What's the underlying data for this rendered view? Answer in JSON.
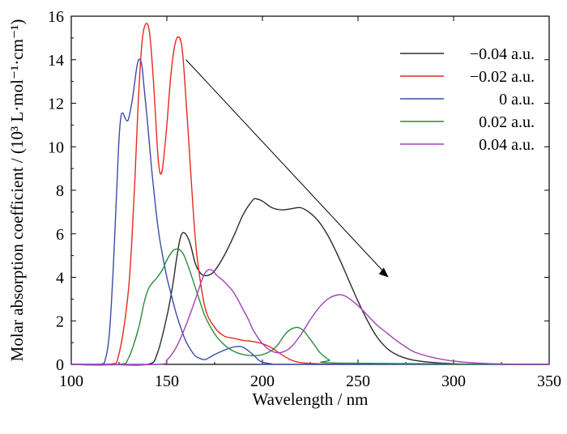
{
  "chart_data": {
    "type": "line",
    "xlabel": "Wavelength / nm",
    "ylabel": "Molar absorption coefficient / (10³ L·mol⁻¹·cm⁻¹)",
    "xlim": [
      100,
      350
    ],
    "ylim": [
      0,
      16
    ],
    "xticks": [
      100,
      150,
      200,
      250,
      300,
      350
    ],
    "yticks": [
      0,
      2,
      4,
      6,
      8,
      10,
      12,
      14,
      16
    ],
    "legend_position": "top-right",
    "annotation": "arrow from upper-left (≈160 nm, 14) to lower-right (≈265 nm, 4) indicating trend",
    "series": [
      {
        "name": "−0.04 a.u.",
        "color": "#2b2b2b",
        "x": [
          100,
          120,
          140,
          145,
          150,
          153,
          155,
          157,
          159,
          162,
          165,
          168,
          170,
          172,
          175,
          180,
          185,
          190,
          195,
          197,
          200,
          205,
          210,
          215,
          220,
          225,
          230,
          235,
          240,
          245,
          250,
          255,
          260,
          265,
          270,
          275,
          280,
          290,
          300,
          310,
          350
        ],
        "y": [
          0,
          0,
          0,
          0.5,
          2.2,
          3.6,
          4.8,
          5.8,
          6.05,
          5.6,
          4.6,
          4.15,
          4.08,
          4.1,
          4.3,
          5.0,
          5.9,
          6.9,
          7.55,
          7.6,
          7.5,
          7.2,
          7.1,
          7.15,
          7.2,
          6.95,
          6.5,
          5.8,
          4.9,
          3.9,
          2.9,
          2.0,
          1.25,
          0.75,
          0.45,
          0.28,
          0.18,
          0.08,
          0.03,
          0.01,
          0
        ]
      },
      {
        "name": "−0.02 a.u.",
        "color": "#e8281e",
        "x": [
          100,
          120,
          125,
          130,
          133,
          135,
          137,
          139,
          141,
          143,
          145,
          146,
          147,
          148,
          150,
          152,
          154,
          156,
          158,
          160,
          162,
          164,
          166,
          170,
          175,
          180,
          185,
          190,
          195,
          200,
          205,
          210,
          215,
          220,
          230,
          240,
          350
        ],
        "y": [
          0,
          0,
          0.5,
          3.5,
          8.0,
          12.0,
          14.8,
          15.65,
          15.2,
          13.0,
          10.0,
          9.0,
          8.75,
          9.2,
          11.0,
          13.2,
          14.6,
          15.05,
          14.5,
          12.2,
          9.5,
          6.8,
          4.8,
          2.6,
          1.7,
          1.3,
          1.2,
          1.1,
          1.05,
          0.95,
          0.75,
          0.45,
          0.2,
          0.08,
          0.02,
          0.01,
          0
        ]
      },
      {
        "name": "0 a.u.",
        "color": "#3a4ca8",
        "x": [
          100,
          115,
          118,
          120,
          122,
          124,
          125,
          126,
          127,
          128,
          129,
          130,
          132,
          134,
          135,
          136,
          137,
          138,
          140,
          142,
          144,
          146,
          148,
          150,
          152,
          155,
          158,
          160,
          163,
          165,
          168,
          170,
          172,
          175,
          180,
          185,
          188,
          190,
          193,
          195,
          198,
          200,
          205,
          210,
          350
        ],
        "y": [
          0,
          0,
          0.3,
          1.5,
          4.5,
          8.5,
          10.4,
          11.4,
          11.55,
          11.35,
          11.2,
          11.3,
          12.2,
          13.5,
          13.95,
          14.0,
          13.7,
          12.8,
          11.0,
          9.0,
          7.3,
          5.9,
          4.9,
          4.0,
          3.3,
          2.3,
          1.5,
          1.05,
          0.6,
          0.38,
          0.25,
          0.22,
          0.3,
          0.45,
          0.65,
          0.8,
          0.82,
          0.78,
          0.6,
          0.45,
          0.2,
          0.1,
          0.02,
          0,
          0
        ]
      },
      {
        "name": "0.02 a.u.",
        "color": "#2a8c3a",
        "x": [
          100,
          125,
          130,
          135,
          138,
          140,
          142,
          145,
          148,
          150,
          153,
          155,
          157,
          159,
          162,
          165,
          168,
          170,
          175,
          180,
          185,
          190,
          195,
          200,
          205,
          208,
          210,
          212,
          215,
          218,
          220,
          222,
          225,
          228,
          230,
          235,
          240,
          350
        ],
        "y": [
          0,
          0,
          0.3,
          1.6,
          2.8,
          3.4,
          3.7,
          4.0,
          4.4,
          4.8,
          5.2,
          5.3,
          5.25,
          5.0,
          4.3,
          3.5,
          2.7,
          2.2,
          1.4,
          0.9,
          0.6,
          0.45,
          0.4,
          0.45,
          0.65,
          0.9,
          1.15,
          1.4,
          1.62,
          1.7,
          1.65,
          1.5,
          1.15,
          0.8,
          0.55,
          0.2,
          0.06,
          0
        ]
      },
      {
        "name": "0.04 a.u.",
        "color": "#a043b8",
        "x": [
          100,
          145,
          150,
          155,
          160,
          165,
          168,
          170,
          172,
          174,
          176,
          178,
          180,
          185,
          190,
          193,
          195,
          200,
          205,
          210,
          215,
          220,
          225,
          230,
          235,
          240,
          243,
          245,
          250,
          255,
          260,
          265,
          270,
          275,
          280,
          290,
          300,
          310,
          320,
          330,
          340,
          350
        ],
        "y": [
          0,
          0,
          0.2,
          0.8,
          1.8,
          3.0,
          3.8,
          4.2,
          4.35,
          4.3,
          4.1,
          3.95,
          3.8,
          3.3,
          2.5,
          2.0,
          1.6,
          0.95,
          0.6,
          0.55,
          0.8,
          1.35,
          2.05,
          2.65,
          3.05,
          3.2,
          3.15,
          3.05,
          2.7,
          2.25,
          1.8,
          1.45,
          1.1,
          0.8,
          0.55,
          0.3,
          0.15,
          0.07,
          0.03,
          0.01,
          0,
          0
        ]
      }
    ]
  }
}
